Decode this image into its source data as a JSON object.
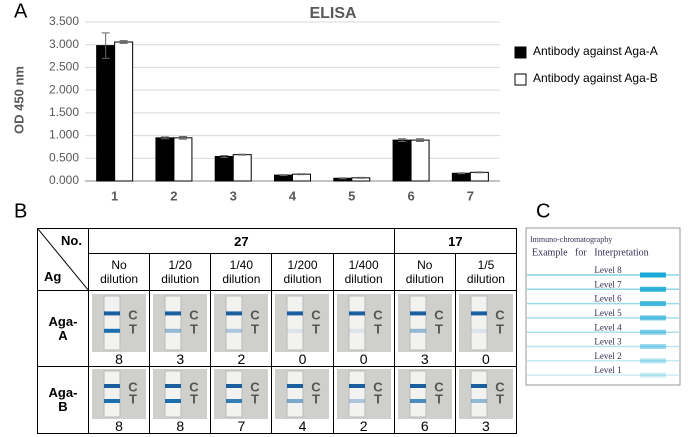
{
  "chart_data": {
    "type": "bar",
    "title": "ELISA",
    "y_label": "OD 450 nm",
    "categories": [
      "1",
      "2",
      "3",
      "4",
      "5",
      "6",
      "7"
    ],
    "series": [
      {
        "name": "Antibody against Aga-A",
        "color": "#000000",
        "values": [
          2.98,
          0.95,
          0.54,
          0.13,
          0.06,
          0.9,
          0.17
        ],
        "errors": [
          0.28,
          0.02,
          0.02,
          0.01,
          0.01,
          0.03,
          0.01
        ]
      },
      {
        "name": "Antibody against Aga-B",
        "color": "#ffffff",
        "values": [
          3.06,
          0.95,
          0.58,
          0.15,
          0.07,
          0.9,
          0.19
        ],
        "errors": [
          0.03,
          0.03,
          0.01,
          0.01,
          0.01,
          0.03,
          0.01
        ]
      }
    ],
    "ylim": [
      0,
      3.5
    ],
    "yticks": [
      {
        "value": 0,
        "label": "0.000"
      },
      {
        "value": 0.5,
        "label": "0.500"
      },
      {
        "value": 1,
        "label": "1.000"
      },
      {
        "value": 1.5,
        "label": "1.500"
      },
      {
        "value": 2,
        "label": "2.000"
      },
      {
        "value": 2.5,
        "label": "2.500"
      },
      {
        "value": 3,
        "label": "3.000"
      },
      {
        "value": 3.5,
        "label": "3.500"
      }
    ],
    "grid": true,
    "legend": "right"
  },
  "panels": {
    "a": "A",
    "b": "B",
    "c": "C"
  },
  "table": {
    "corner_top": "No.",
    "corner_bottom": "Ag",
    "groups": [
      {
        "label": "27",
        "span": 5
      },
      {
        "label": "17",
        "span": 2
      }
    ],
    "dilutions": [
      "No dilution",
      "1/20 dilution",
      "1/40 dilution",
      "1/200 dilution",
      "1/400 dilution",
      "No dilution",
      "1/5 dilution"
    ],
    "strip_marks": {
      "control": "C",
      "test": "T"
    },
    "rows": [
      {
        "label": "Aga-A",
        "scores": [
          8,
          3,
          2,
          0,
          0,
          3,
          0
        ]
      },
      {
        "label": "Aga-B",
        "scores": [
          8,
          8,
          7,
          4,
          2,
          6,
          3
        ]
      }
    ]
  },
  "scale": {
    "title": "Immuno-chromatography",
    "subtitle": "Example for Interpretation",
    "levels": [
      "Level 8",
      "Level 7",
      "Level 6",
      "Level 5",
      "Level 4",
      "Level 3",
      "Level 2",
      "Level 1"
    ]
  }
}
